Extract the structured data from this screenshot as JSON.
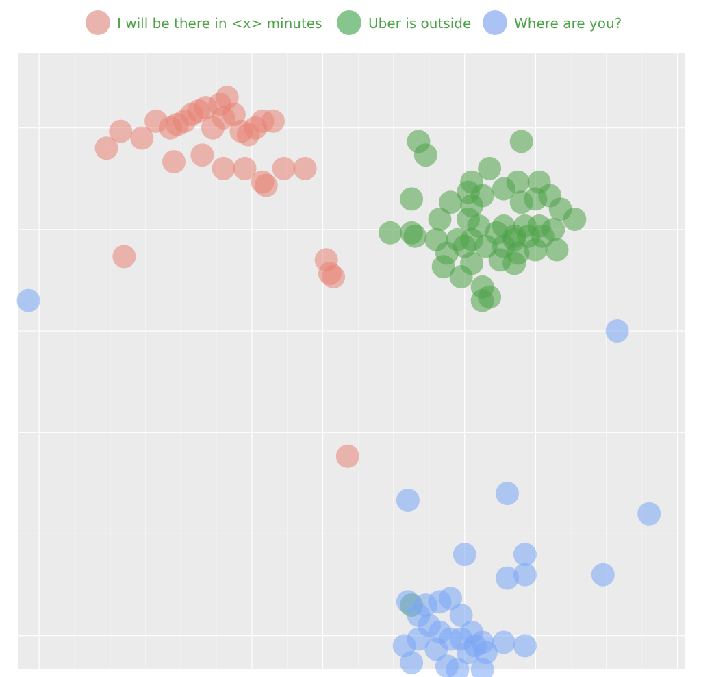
{
  "chart_data": {
    "type": "scatter",
    "title": "",
    "xlabel": "",
    "ylabel": "",
    "xlim": [
      -4.8,
      4.6
    ],
    "ylim": [
      -4.5,
      4.6
    ],
    "grid": true,
    "legend_position": "top",
    "legend_color": "#4ea349",
    "series": [
      {
        "name": "I will be there in <x> minutes",
        "color": "#e88474",
        "legend_swatch": "#e9b4ae",
        "points": [
          [
            -3.55,
            3.2
          ],
          [
            -3.35,
            3.45
          ],
          [
            -3.05,
            3.35
          ],
          [
            -2.85,
            3.6
          ],
          [
            -2.65,
            3.5
          ],
          [
            -2.55,
            3.55
          ],
          [
            -2.45,
            3.6
          ],
          [
            -2.35,
            3.7
          ],
          [
            -2.25,
            3.75
          ],
          [
            -2.15,
            3.8
          ],
          [
            -1.95,
            3.85
          ],
          [
            -1.85,
            3.95
          ],
          [
            -1.9,
            3.65
          ],
          [
            -1.75,
            3.7
          ],
          [
            -1.55,
            3.4
          ],
          [
            -1.45,
            3.5
          ],
          [
            -1.35,
            3.6
          ],
          [
            -1.2,
            3.6
          ],
          [
            -2.05,
            3.5
          ],
          [
            -1.65,
            3.45
          ],
          [
            -2.6,
            3.0
          ],
          [
            -2.2,
            3.1
          ],
          [
            -1.9,
            2.9
          ],
          [
            -1.6,
            2.9
          ],
          [
            -1.35,
            2.7
          ],
          [
            -1.05,
            2.9
          ],
          [
            -0.75,
            2.9
          ],
          [
            -1.3,
            2.65
          ],
          [
            -3.3,
            1.6
          ],
          [
            -0.45,
            1.55
          ],
          [
            -0.4,
            1.35
          ],
          [
            -0.35,
            1.3
          ],
          [
            -0.15,
            -1.35
          ]
        ]
      },
      {
        "name": "Uber is outside",
        "color": "#4ea349",
        "legend_swatch": "#86c58e",
        "points": [
          [
            0.85,
            3.3
          ],
          [
            0.95,
            3.1
          ],
          [
            2.3,
            3.3
          ],
          [
            1.85,
            2.9
          ],
          [
            1.6,
            2.7
          ],
          [
            1.55,
            2.55
          ],
          [
            1.75,
            2.5
          ],
          [
            2.05,
            2.6
          ],
          [
            2.25,
            2.7
          ],
          [
            2.55,
            2.7
          ],
          [
            0.75,
            2.45
          ],
          [
            1.3,
            2.4
          ],
          [
            1.6,
            2.35
          ],
          [
            2.3,
            2.4
          ],
          [
            2.5,
            2.45
          ],
          [
            2.7,
            2.5
          ],
          [
            2.85,
            2.3
          ],
          [
            1.15,
            2.15
          ],
          [
            1.55,
            2.15
          ],
          [
            1.7,
            2.05
          ],
          [
            2.05,
            2.05
          ],
          [
            2.35,
            2.05
          ],
          [
            2.55,
            2.05
          ],
          [
            2.75,
            2.0
          ],
          [
            3.05,
            2.15
          ],
          [
            0.45,
            1.95
          ],
          [
            0.75,
            1.95
          ],
          [
            1.1,
            1.85
          ],
          [
            1.4,
            1.85
          ],
          [
            1.6,
            1.85
          ],
          [
            1.95,
            1.95
          ],
          [
            2.2,
            1.9
          ],
          [
            2.4,
            1.9
          ],
          [
            2.6,
            1.9
          ],
          [
            2.2,
            1.85
          ],
          [
            1.25,
            1.65
          ],
          [
            1.5,
            1.75
          ],
          [
            1.8,
            1.75
          ],
          [
            2.05,
            1.75
          ],
          [
            2.25,
            1.65
          ],
          [
            2.5,
            1.7
          ],
          [
            2.8,
            1.7
          ],
          [
            1.2,
            1.45
          ],
          [
            1.6,
            1.5
          ],
          [
            2.0,
            1.55
          ],
          [
            2.2,
            1.5
          ],
          [
            1.45,
            1.3
          ],
          [
            1.75,
            1.15
          ],
          [
            1.85,
            1.0
          ],
          [
            1.75,
            0.95
          ],
          [
            0.8,
            1.9
          ],
          [
            0.75,
            -3.55
          ]
        ]
      },
      {
        "name": "Where are you?",
        "color": "#7aa5f5",
        "legend_swatch": "#aac3f4",
        "points": [
          [
            -4.65,
            0.95
          ],
          [
            3.65,
            0.5
          ],
          [
            4.1,
            -2.2
          ],
          [
            2.1,
            -1.9
          ],
          [
            0.7,
            -2.0
          ],
          [
            1.5,
            -2.8
          ],
          [
            2.35,
            -2.8
          ],
          [
            3.45,
            -3.1
          ],
          [
            2.35,
            -3.1
          ],
          [
            2.1,
            -3.15
          ],
          [
            0.7,
            -3.5
          ],
          [
            0.95,
            -3.55
          ],
          [
            1.15,
            -3.5
          ],
          [
            1.3,
            -3.45
          ],
          [
            1.45,
            -3.7
          ],
          [
            0.85,
            -3.7
          ],
          [
            1.0,
            -3.85
          ],
          [
            1.15,
            -3.95
          ],
          [
            1.3,
            -4.05
          ],
          [
            1.45,
            -4.05
          ],
          [
            1.6,
            -3.95
          ],
          [
            1.65,
            -4.15
          ],
          [
            1.75,
            -4.1
          ],
          [
            1.55,
            -4.25
          ],
          [
            1.8,
            -4.25
          ],
          [
            1.75,
            -4.5
          ],
          [
            1.4,
            -4.5
          ],
          [
            1.25,
            -4.45
          ],
          [
            1.1,
            -4.2
          ],
          [
            0.85,
            -4.05
          ],
          [
            0.65,
            -4.15
          ],
          [
            0.75,
            -4.4
          ],
          [
            2.05,
            -4.1
          ],
          [
            2.35,
            -4.15
          ]
        ]
      }
    ]
  }
}
